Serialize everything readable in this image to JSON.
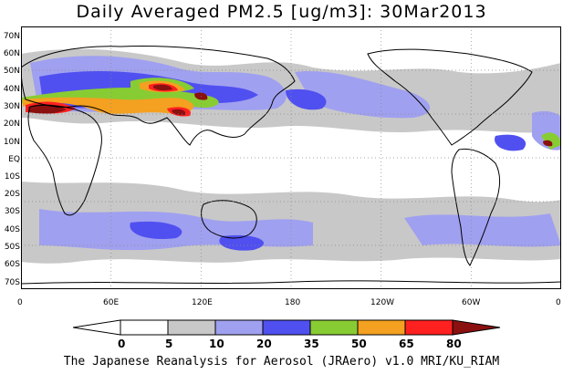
{
  "title": "Daily Averaged PM2.5 [ug/m3]: 30Mar2013",
  "credit": "The Japanese Reanalysis for Aerosol (JRAero) v1.0 MRI/KU_RIAM",
  "lat_labels": [
    "70N",
    "60N",
    "50N",
    "40N",
    "30N",
    "20N",
    "10N",
    "EQ",
    "10S",
    "20S",
    "30S",
    "40S",
    "50S",
    "60S",
    "70S"
  ],
  "lon_labels": [
    "0",
    "60E",
    "120E",
    "180",
    "120W",
    "60W",
    "0"
  ],
  "colorbar": {
    "levels": [
      "0",
      "5",
      "10",
      "20",
      "35",
      "50",
      "65",
      "80"
    ],
    "colors": [
      "#ffffff",
      "#c8c8c8",
      "#a0a0f0",
      "#5050f0",
      "#88cc33",
      "#f4a020",
      "#ff2020",
      "#8b1010"
    ]
  },
  "colors": {
    "land_outline": "#000000",
    "grid": "#888888"
  }
}
